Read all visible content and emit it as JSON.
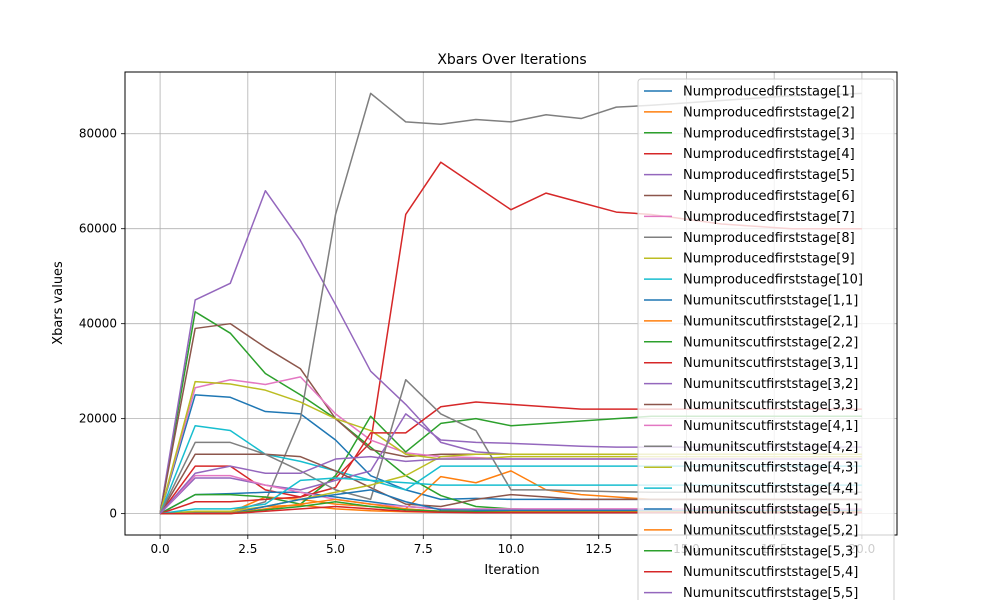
{
  "chart_data": {
    "type": "line",
    "title": "Xbars Over Iterations",
    "xlabel": "Iteration",
    "ylabel": "Xbars values",
    "xlim": [
      -1,
      21
    ],
    "ylim": [
      -4500,
      93000
    ],
    "xticks": [
      0,
      2.5,
      5,
      7.5,
      10,
      12.5,
      15,
      17.5,
      20
    ],
    "xtick_labels": [
      "0.0",
      "2.5",
      "5.0",
      "7.5",
      "10.0",
      "12.5",
      "15.0",
      "17.5",
      "20.0"
    ],
    "yticks": [
      0,
      20000,
      40000,
      60000,
      80000
    ],
    "ytick_labels": [
      "0",
      "20000",
      "40000",
      "60000",
      "80000"
    ],
    "grid": true,
    "legend_position": "upper right",
    "x": [
      0,
      1,
      2,
      3,
      4,
      5,
      6,
      7,
      8,
      9,
      10,
      11,
      12,
      13,
      14,
      15,
      16,
      17,
      18,
      19,
      20
    ],
    "series": [
      {
        "name": "Numproducedfirststage[1]",
        "color": "#1f77b4",
        "values": [
          0,
          25000,
          24500,
          21500,
          21000,
          15500,
          8000,
          5000,
          3000,
          3200,
          3000,
          3000,
          3000,
          3000,
          3000,
          3000,
          3000,
          3000,
          3000,
          3000,
          3000
        ]
      },
      {
        "name": "Numproducedfirststage[2]",
        "color": "#ff7f0e",
        "values": [
          0,
          200,
          300,
          3500,
          3000,
          2000,
          1500,
          1000,
          7800,
          6500,
          9000,
          5000,
          4000,
          3500,
          3000,
          3000,
          3000,
          3000,
          3000,
          3000,
          3000
        ]
      },
      {
        "name": "Numproducedfirststage[3]",
        "color": "#2ca02c",
        "values": [
          0,
          42500,
          38000,
          29500,
          25000,
          20000,
          14000,
          8000,
          3800,
          1500,
          1000,
          800,
          800,
          800,
          800,
          800,
          800,
          800,
          800,
          800,
          800
        ]
      },
      {
        "name": "Numproducedfirststage[4]",
        "color": "#d62728",
        "values": [
          0,
          10000,
          10000,
          5000,
          3500,
          7500,
          15000,
          63000,
          74000,
          69000,
          64000,
          67500,
          65500,
          63500,
          63000,
          62000,
          61000,
          60500,
          60000,
          60000,
          60000
        ]
      },
      {
        "name": "Numproducedfirststage[5]",
        "color": "#9467bd",
        "values": [
          0,
          45000,
          48500,
          68000,
          57500,
          44000,
          30000,
          23000,
          15000,
          13000,
          12500,
          12500,
          12500,
          12500,
          12500,
          12500,
          12500,
          12500,
          12500,
          12500,
          12500
        ]
      },
      {
        "name": "Numproducedfirststage[6]",
        "color": "#8c564b",
        "values": [
          0,
          39000,
          40000,
          35000,
          30500,
          20000,
          13500,
          12000,
          12500,
          12500,
          12500,
          12500,
          12500,
          12500,
          12500,
          12500,
          12500,
          12500,
          12500,
          12500,
          12500
        ]
      },
      {
        "name": "Numproducedfirststage[7]",
        "color": "#e377c2",
        "values": [
          0,
          26500,
          28200,
          27200,
          28800,
          21000,
          15500,
          12800,
          12000,
          11800,
          11500,
          11500,
          11500,
          11500,
          11500,
          11500,
          11500,
          11500,
          11500,
          11500,
          11500
        ]
      },
      {
        "name": "Numproducedfirststage[8]",
        "color": "#7f7f7f",
        "values": [
          0,
          200,
          300,
          2500,
          20000,
          63000,
          88500,
          82500,
          82000,
          83000,
          82500,
          84000,
          83200,
          85600,
          86000,
          86500,
          87000,
          87500,
          88000,
          88200,
          88500
        ]
      },
      {
        "name": "Numproducedfirststage[9]",
        "color": "#bcbd22",
        "values": [
          0,
          27800,
          27300,
          26000,
          23500,
          20000,
          17500,
          12500,
          11500,
          11500,
          12000,
          12000,
          12000,
          12000,
          12000,
          12000,
          12000,
          12000,
          12000,
          12000,
          12000
        ]
      },
      {
        "name": "Numproducedfirststage[10]",
        "color": "#17becf",
        "values": [
          0,
          18500,
          17500,
          12500,
          11000,
          9000,
          7000,
          5000,
          10000,
          10000,
          10000,
          10000,
          10000,
          10000,
          10000,
          10000,
          10000,
          10000,
          10000,
          10000,
          10000
        ]
      },
      {
        "name": "Numunitscutfirststage[1,1]",
        "color": "#1f77b4",
        "values": [
          0,
          4000,
          4200,
          4500,
          4500,
          3500,
          2500,
          1500,
          1000,
          800,
          700,
          700,
          700,
          700,
          700,
          700,
          700,
          700,
          700,
          700,
          700
        ]
      },
      {
        "name": "Numunitscutfirststage[2,1]",
        "color": "#ff7f0e",
        "values": [
          0,
          0,
          100,
          1500,
          1800,
          1000,
          600,
          400,
          300,
          300,
          300,
          300,
          300,
          300,
          300,
          300,
          300,
          300,
          300,
          300,
          300
        ]
      },
      {
        "name": "Numunitscutfirststage[2,2]",
        "color": "#2ca02c",
        "values": [
          0,
          4000,
          4000,
          3500,
          2000,
          8000,
          20500,
          13000,
          19000,
          20000,
          18500,
          19000,
          19500,
          20000,
          20500,
          20500,
          20500,
          20500,
          20500,
          20500,
          20500
        ]
      },
      {
        "name": "Numunitscutfirststage[3,1]",
        "color": "#d62728",
        "values": [
          0,
          2500,
          2500,
          3000,
          3500,
          5500,
          17000,
          17000,
          22500,
          23500,
          23000,
          22500,
          22000,
          22000,
          22000,
          22000,
          22000,
          22000,
          22000,
          22000,
          22000
        ]
      },
      {
        "name": "Numunitscutfirststage[3,2]",
        "color": "#9467bd",
        "values": [
          0,
          7500,
          7500,
          6000,
          5000,
          7000,
          9000,
          21000,
          15500,
          15000,
          14800,
          14500,
          14200,
          14000,
          14000,
          14000,
          14000,
          14000,
          14000,
          14000,
          14000
        ]
      },
      {
        "name": "Numunitscutfirststage[3,3]",
        "color": "#8c564b",
        "values": [
          0,
          12500,
          12500,
          12500,
          12000,
          9000,
          5500,
          2000,
          1500,
          3000,
          4000,
          3500,
          3000,
          3000,
          3000,
          3000,
          3000,
          3000,
          3000,
          3000,
          3000
        ]
      },
      {
        "name": "Numunitscutfirststage[4,1]",
        "color": "#e377c2",
        "values": [
          0,
          8000,
          8000,
          6000,
          4500,
          3000,
          2000,
          1500,
          1000,
          1000,
          1000,
          1000,
          1000,
          1000,
          1000,
          1000,
          1000,
          1000,
          1000,
          1000,
          1000
        ]
      },
      {
        "name": "Numunitscutfirststage[4,2]",
        "color": "#7f7f7f",
        "values": [
          0,
          15000,
          15000,
          12500,
          9000,
          5000,
          3000,
          28200,
          21000,
          17500,
          5000,
          5000,
          4800,
          4600,
          4500,
          4500,
          4500,
          4500,
          4500,
          4500,
          4500
        ]
      },
      {
        "name": "Numunitscutfirststage[4,3]",
        "color": "#bcbd22",
        "values": [
          0,
          500,
          500,
          1500,
          3000,
          4500,
          6000,
          8000,
          12000,
          12500,
          12500,
          12500,
          12500,
          12500,
          12500,
          12500,
          12500,
          12500,
          12500,
          12500,
          12500
        ]
      },
      {
        "name": "Numunitscutfirststage[4,4]",
        "color": "#17becf",
        "values": [
          0,
          1000,
          1000,
          2000,
          7000,
          7500,
          7000,
          6500,
          6000,
          6000,
          6000,
          6000,
          6000,
          6000,
          6000,
          6000,
          6000,
          6000,
          6000,
          6000,
          6000
        ]
      },
      {
        "name": "Numunitscutfirststage[5,1]",
        "color": "#1f77b4",
        "values": [
          0,
          0,
          0,
          1500,
          3000,
          4000,
          5000,
          2500,
          800,
          700,
          600,
          600,
          600,
          600,
          600,
          600,
          600,
          600,
          600,
          600,
          600
        ]
      },
      {
        "name": "Numunitscutfirststage[5,2]",
        "color": "#ff7f0e",
        "values": [
          0,
          0,
          0,
          1000,
          2000,
          3000,
          2000,
          1000,
          500,
          400,
          400,
          400,
          400,
          400,
          400,
          400,
          400,
          400,
          400,
          400,
          400
        ]
      },
      {
        "name": "Numunitscutfirststage[5,3]",
        "color": "#2ca02c",
        "values": [
          0,
          0,
          0,
          800,
          1500,
          2500,
          1500,
          800,
          500,
          400,
          300,
          300,
          300,
          300,
          300,
          300,
          300,
          300,
          300,
          300,
          300
        ]
      },
      {
        "name": "Numunitscutfirststage[5,4]",
        "color": "#d62728",
        "values": [
          0,
          0,
          0,
          500,
          1000,
          1500,
          1000,
          500,
          300,
          200,
          200,
          200,
          200,
          200,
          200,
          200,
          200,
          200,
          200,
          200,
          200
        ]
      },
      {
        "name": "Numunitscutfirststage[5,5]",
        "color": "#9467bd",
        "values": [
          0,
          8500,
          10000,
          8500,
          8500,
          11500,
          12000,
          11000,
          11500,
          11500,
          11500,
          11500,
          11500,
          11500,
          11500,
          11500,
          11500,
          11500,
          11500,
          11500,
          11500
        ]
      }
    ]
  }
}
